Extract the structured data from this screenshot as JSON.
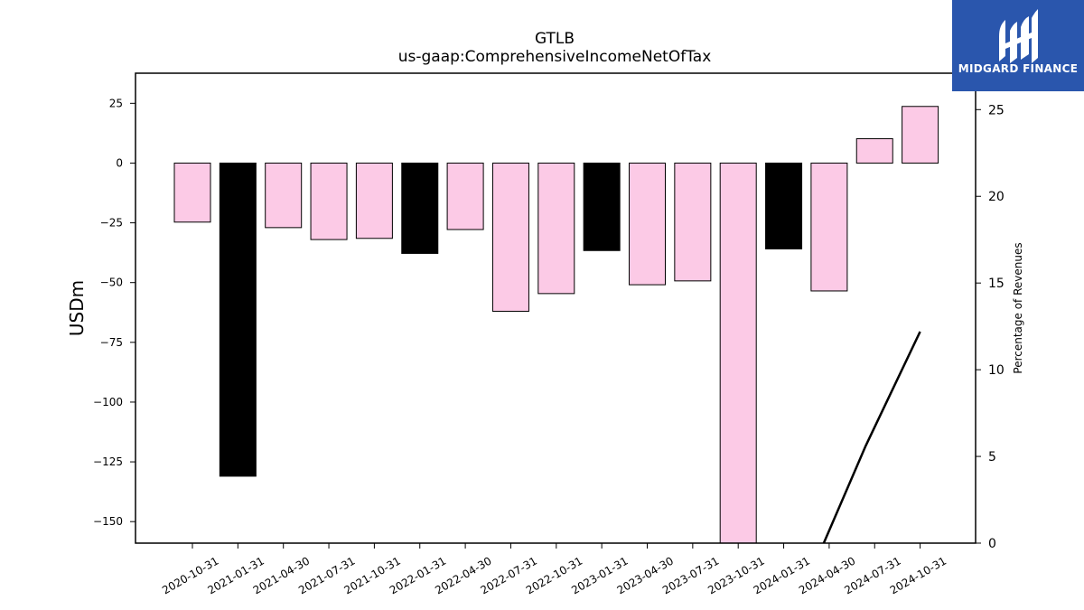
{
  "chart_data": {
    "type": "bar",
    "title": "GTLB",
    "subtitle": "us-gaap:ComprehensiveIncomeNetOfTax",
    "ylabel": "USDm",
    "y2label": "Percentage of Revenues",
    "categories": [
      "2020-10-31",
      "2021-01-31",
      "2021-04-30",
      "2021-07-31",
      "2021-10-31",
      "2022-01-31",
      "2022-04-30",
      "2022-07-31",
      "2022-10-31",
      "2023-01-31",
      "2023-04-30",
      "2023-07-31",
      "2023-10-31",
      "2024-01-31",
      "2024-04-30",
      "2024-07-31",
      "2024-10-31"
    ],
    "values": [
      -24.7,
      -131.0,
      -27.0,
      -32.0,
      -31.5,
      -37.8,
      -27.8,
      -62.0,
      -54.6,
      -36.6,
      -50.9,
      -49.3,
      -162.0,
      -35.9,
      -53.5,
      10.2,
      23.7
    ],
    "bar_kinds": [
      "q",
      "a",
      "q",
      "q",
      "q",
      "a",
      "q",
      "q",
      "q",
      "a",
      "q",
      "q",
      "q",
      "a",
      "q",
      "q",
      "q"
    ],
    "colors": {
      "quarter": "#fccae6",
      "annual": "#000000",
      "line": "#000000"
    },
    "ylim": [
      -159,
      37.6
    ],
    "yticks": [
      25,
      0,
      -25,
      -50,
      -75,
      -100,
      -125,
      -150
    ],
    "ytick_labels": [
      "25",
      "0",
      "−25",
      "−50",
      "−75",
      "−100",
      "−125",
      "−150"
    ],
    "y2lim": [
      0,
      27.1
    ],
    "y2ticks": [
      0,
      5,
      10,
      15,
      20,
      25
    ],
    "y2tick_labels": [
      "0",
      "5",
      "10",
      "15",
      "20",
      "25"
    ],
    "line_series": {
      "name": "Percentage of Revenues",
      "x": [
        "2024-04-30",
        "2024-07-31",
        "2024-10-31"
      ],
      "values": [
        0,
        5.6,
        12.2
      ]
    },
    "legend": "none",
    "grid": false
  },
  "logo": {
    "text": "MIDGARD FINANCE",
    "icon": "midgard-m-logo-icon",
    "bg": "#2a56ad"
  }
}
